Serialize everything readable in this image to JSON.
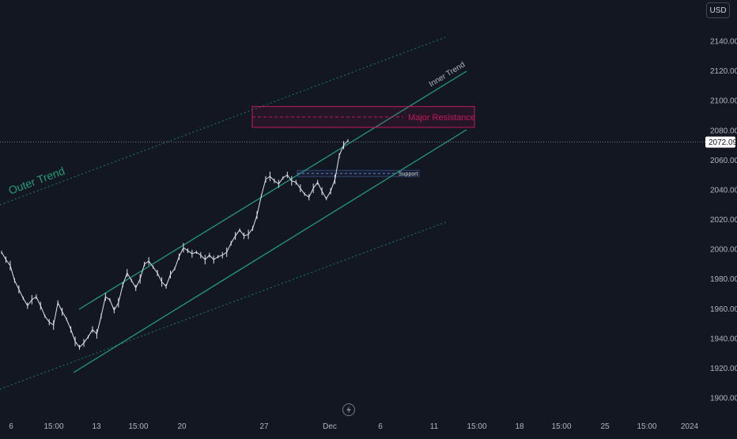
{
  "currency": "USD",
  "last_price_label": "2072.09",
  "colors": {
    "background": "#131722",
    "axis_text": "#b2b5be",
    "trend": "#1e9e76",
    "outer_trend": "#1a7f5c",
    "resistance": "#c2185b",
    "support_line": "#5b7bd6",
    "candle": "#e0e3eb"
  },
  "chart_data": {
    "type": "line",
    "title": "",
    "y_axis": {
      "ticks": [
        "2140.00",
        "2120.00",
        "2100.00",
        "2080.00",
        "2060.00",
        "2040.00",
        "2020.00",
        "2000.00",
        "1980.00",
        "1960.00",
        "1940.00",
        "1920.00",
        "1900.00"
      ],
      "range": [
        1894,
        2156
      ]
    },
    "x_axis": {
      "ticks": [
        "6",
        "15:00",
        "13",
        "15:00",
        "20",
        "27",
        "Dec",
        "6",
        "11",
        "15:00",
        "18",
        "15:00",
        "25",
        "15:00",
        "2024"
      ]
    },
    "last_price": 2072.09,
    "series": [
      {
        "values": [
          1998,
          1993,
          1989,
          1979,
          1973,
          1967,
          1962,
          1966,
          1968,
          1962,
          1955,
          1951,
          1949,
          1964,
          1958,
          1953,
          1946,
          1938,
          1934,
          1937,
          1941,
          1946,
          1943,
          1955,
          1968,
          1966,
          1959,
          1964,
          1976,
          1984,
          1979,
          1974,
          1980,
          1990,
          1992,
          1988,
          1984,
          1978,
          1975,
          1983,
          1987,
          1995,
          2001,
          1999,
          1997,
          1998,
          1996,
          1993,
          1996,
          1993,
          1995,
          1996,
          1998,
          2004,
          2009,
          2013,
          2009,
          2010,
          2014,
          2023,
          2036,
          2047,
          2049,
          2046,
          2044,
          2048,
          2050,
          2046,
          2045,
          2041,
          2037,
          2035,
          2041,
          2045,
          2039,
          2034,
          2039,
          2047,
          2063,
          2070,
          2073
        ]
      }
    ],
    "annotations": {
      "inner_trend_label": "Inner Trend",
      "outer_trend_label": "Outer Trend",
      "resistance_label": "Major Resistance",
      "resistance_zone": [
        2082,
        2096
      ],
      "support_label": "Support",
      "support_level": 2051
    }
  }
}
